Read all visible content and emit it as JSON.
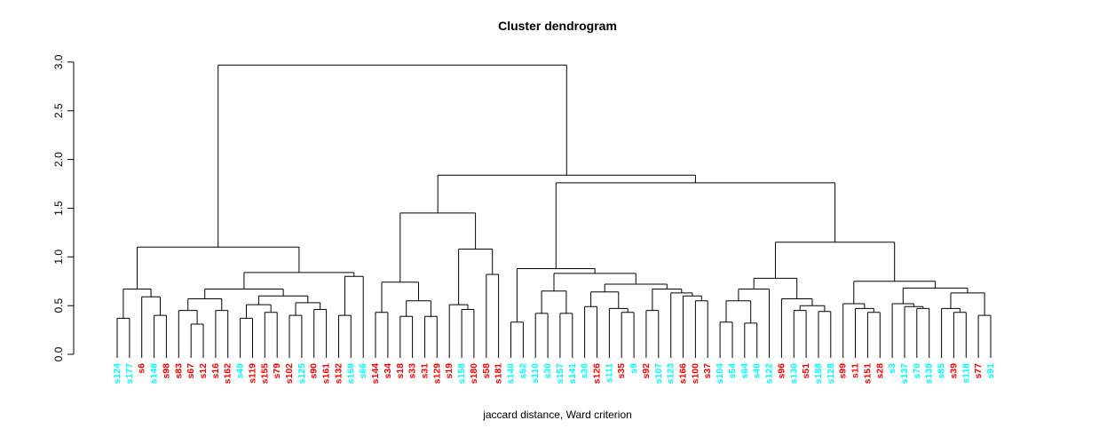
{
  "chart_data": {
    "type": "dendrogram",
    "title": "Cluster dendrogram",
    "caption": "jaccard distance, Ward criterion",
    "ylabel": "",
    "ylim": [
      0.0,
      3.0
    ],
    "yticks": [
      0.0,
      0.5,
      1.0,
      1.5,
      2.0,
      2.5,
      3.0
    ],
    "ytick_labels": [
      "0.0",
      "0.5",
      "1.0",
      "1.5",
      "2.0",
      "2.5",
      "3.0"
    ],
    "grid": "off",
    "branch_color": "#000000",
    "label_colors": {
      "red": "#ff0000",
      "cyan": "#00ffff"
    },
    "leaves": [
      {
        "label": "s124",
        "color": "cyan"
      },
      {
        "label": "s177",
        "color": "cyan"
      },
      {
        "label": "s6",
        "color": "red"
      },
      {
        "label": "s148",
        "color": "cyan"
      },
      {
        "label": "s98",
        "color": "red"
      },
      {
        "label": "s83",
        "color": "red"
      },
      {
        "label": "s67",
        "color": "red"
      },
      {
        "label": "s12",
        "color": "red"
      },
      {
        "label": "s16",
        "color": "red"
      },
      {
        "label": "s162",
        "color": "red"
      },
      {
        "label": "s49",
        "color": "cyan"
      },
      {
        "label": "s119",
        "color": "red"
      },
      {
        "label": "s155",
        "color": "red"
      },
      {
        "label": "s79",
        "color": "red"
      },
      {
        "label": "s102",
        "color": "red"
      },
      {
        "label": "s125",
        "color": "cyan"
      },
      {
        "label": "s90",
        "color": "red"
      },
      {
        "label": "s161",
        "color": "red"
      },
      {
        "label": "s132",
        "color": "red"
      },
      {
        "label": "s159",
        "color": "cyan"
      },
      {
        "label": "s66",
        "color": "cyan"
      },
      {
        "label": "s144",
        "color": "red"
      },
      {
        "label": "s34",
        "color": "red"
      },
      {
        "label": "s18",
        "color": "red"
      },
      {
        "label": "s33",
        "color": "red"
      },
      {
        "label": "s31",
        "color": "red"
      },
      {
        "label": "s129",
        "color": "red"
      },
      {
        "label": "s19",
        "color": "red"
      },
      {
        "label": "s158",
        "color": "cyan"
      },
      {
        "label": "s180",
        "color": "red"
      },
      {
        "label": "s58",
        "color": "red"
      },
      {
        "label": "s181",
        "color": "red"
      },
      {
        "label": "s140",
        "color": "cyan"
      },
      {
        "label": "s52",
        "color": "cyan"
      },
      {
        "label": "s110",
        "color": "cyan"
      },
      {
        "label": "s30",
        "color": "cyan"
      },
      {
        "label": "s157",
        "color": "cyan"
      },
      {
        "label": "s141",
        "color": "cyan"
      },
      {
        "label": "s36",
        "color": "cyan"
      },
      {
        "label": "s126",
        "color": "red"
      },
      {
        "label": "s111",
        "color": "cyan"
      },
      {
        "label": "s35",
        "color": "red"
      },
      {
        "label": "s9",
        "color": "cyan"
      },
      {
        "label": "s92",
        "color": "red"
      },
      {
        "label": "s107",
        "color": "cyan"
      },
      {
        "label": "s123",
        "color": "cyan"
      },
      {
        "label": "s166",
        "color": "red"
      },
      {
        "label": "s100",
        "color": "red"
      },
      {
        "label": "s37",
        "color": "red"
      },
      {
        "label": "s104",
        "color": "cyan"
      },
      {
        "label": "s54",
        "color": "cyan"
      },
      {
        "label": "s64",
        "color": "cyan"
      },
      {
        "label": "s40",
        "color": "cyan"
      },
      {
        "label": "s122",
        "color": "cyan"
      },
      {
        "label": "s96",
        "color": "red"
      },
      {
        "label": "s130",
        "color": "cyan"
      },
      {
        "label": "s51",
        "color": "red"
      },
      {
        "label": "s188",
        "color": "cyan"
      },
      {
        "label": "s128",
        "color": "cyan"
      },
      {
        "label": "s99",
        "color": "red"
      },
      {
        "label": "s11",
        "color": "red"
      },
      {
        "label": "s151",
        "color": "red"
      },
      {
        "label": "s28",
        "color": "red"
      },
      {
        "label": "s3",
        "color": "cyan"
      },
      {
        "label": "s137",
        "color": "cyan"
      },
      {
        "label": "s70",
        "color": "cyan"
      },
      {
        "label": "s139",
        "color": "cyan"
      },
      {
        "label": "s85",
        "color": "cyan"
      },
      {
        "label": "s39",
        "color": "red"
      },
      {
        "label": "s118",
        "color": "cyan"
      },
      {
        "label": "s77",
        "color": "red"
      },
      {
        "label": "s91",
        "color": "cyan"
      }
    ],
    "tree": [
      2.97,
      [
        1.1,
        [
          0.67,
          [
            0.37,
            0,
            1
          ],
          [
            0.59,
            2,
            [
              0.4,
              3,
              4
            ]
          ]
        ],
        [
          0.84,
          [
            0.67,
            [
              0.57,
              [
                0.45,
                5,
                [
                  0.31,
                  6,
                  7
                ]
              ],
              [
                0.45,
                8,
                9
              ]
            ],
            [
              0.6,
              [
                0.51,
                [
                  0.37,
                  10,
                  11
                ],
                [
                  0.43,
                  12,
                  13
                ]
              ],
              [
                0.53,
                [
                  0.4,
                  14,
                  15
                ],
                [
                  0.46,
                  16,
                  17
                ]
              ]
            ]
          ],
          [
            0.8,
            [
              0.4,
              18,
              19
            ],
            20
          ]
        ]
      ],
      [
        1.84,
        [
          1.45,
          [
            0.74,
            [
              0.43,
              21,
              22
            ],
            [
              0.55,
              [
                0.39,
                23,
                24
              ],
              [
                0.39,
                25,
                26
              ]
            ]
          ],
          [
            1.08,
            [
              0.51,
              27,
              [
                0.46,
                28,
                29
              ]
            ],
            [
              0.82,
              30,
              31
            ]
          ]
        ],
        [
          1.76,
          [
            0.88,
            [
              0.33,
              32,
              33
            ],
            [
              0.83,
              [
                0.65,
                [
                  0.42,
                  34,
                  35
                ],
                [
                  0.42,
                  36,
                  37
                ]
              ],
              [
                0.72,
                [
                  0.64,
                  [
                    0.49,
                    38,
                    39
                  ],
                  [
                    0.47,
                    40,
                    [
                      0.43,
                      41,
                      42
                    ]
                  ]
                ],
                [
                  0.67,
                  [
                    0.45,
                    43,
                    44
                  ],
                  [
                    0.63,
                    45,
                    [
                      0.6,
                      46,
                      [
                        0.55,
                        47,
                        48
                      ]
                    ]
                  ]
                ]
              ]
            ]
          ],
          [
            1.15,
            [
              0.78,
              [
                0.67,
                [
                  0.55,
                  [
                    0.33,
                    49,
                    50
                  ],
                  [
                    0.32,
                    51,
                    52
                  ]
                ],
                53
              ],
              [
                0.57,
                54,
                [
                  0.5,
                  [
                    0.45,
                    55,
                    56
                  ],
                  [
                    0.44,
                    57,
                    58
                  ]
                ]
              ]
            ],
            [
              0.75,
              [
                0.52,
                59,
                [
                  0.47,
                  60,
                  [
                    0.43,
                    61,
                    62
                  ]
                ]
              ],
              [
                0.68,
                [
                  0.52,
                  63,
                  [
                    0.49,
                    64,
                    [
                      0.47,
                      65,
                      66
                    ]
                  ]
                ],
                [
                  0.63,
                  [
                    0.47,
                    67,
                    [
                      0.43,
                      68,
                      69
                    ]
                  ],
                  [
                    0.4,
                    70,
                    71
                  ]
                ]
              ]
            ]
          ]
        ]
      ]
    ]
  }
}
